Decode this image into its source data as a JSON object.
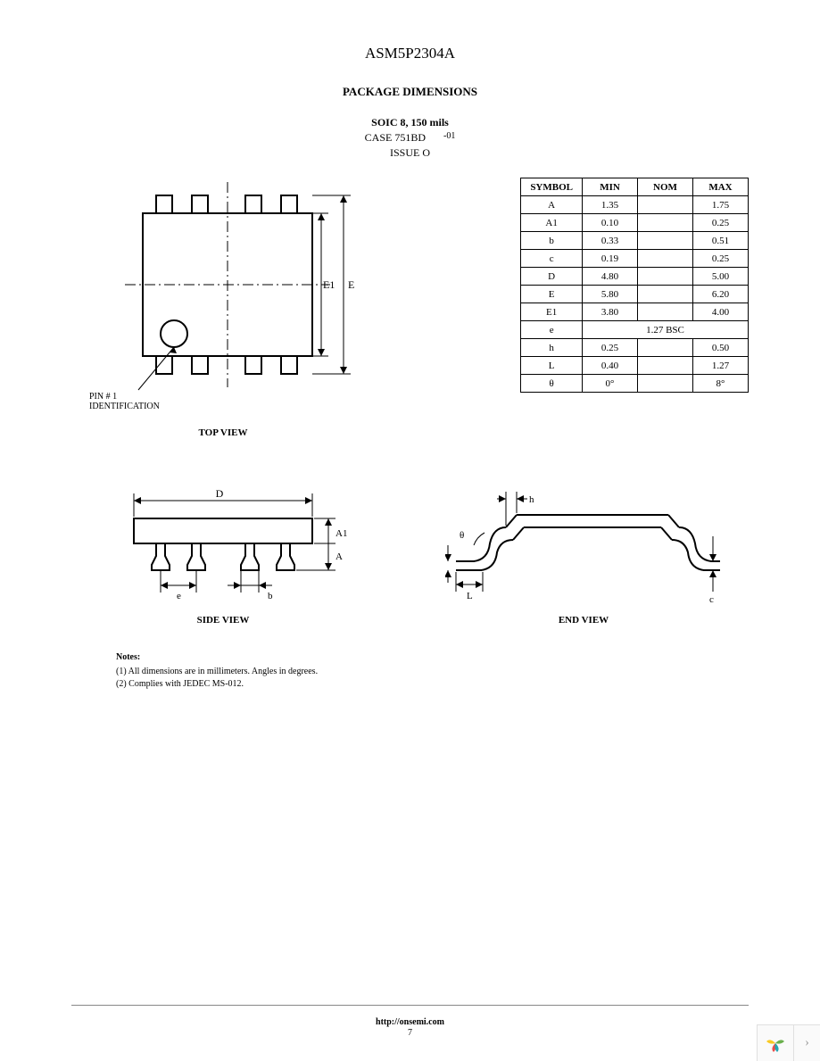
{
  "header": {
    "part_number": "ASM5P2304A",
    "section_title": "PACKAGE DIMENSIONS",
    "package_bold": "SOIC 8, 150 mils",
    "case_line": "CASE 751BD",
    "case_suffix": "-01",
    "issue_line": "ISSUE O"
  },
  "views": {
    "top_label": "TOP VIEW",
    "side_label": "SIDE VIEW",
    "end_label": "END VIEW",
    "pin1_label": "PIN # 1\nIDENTIFICATION",
    "dim_E1": "E1",
    "dim_E": "E",
    "dim_D": "D",
    "dim_A1": "A1",
    "dim_A": "A",
    "dim_e": "e",
    "dim_b": "b",
    "dim_h": "h",
    "dim_theta": "θ",
    "dim_L": "L",
    "dim_c": "c"
  },
  "table": {
    "headers": [
      "SYMBOL",
      "MIN",
      "NOM",
      "MAX"
    ],
    "rows": [
      {
        "sym": "A",
        "min": "1.35",
        "nom": "",
        "max": "1.75"
      },
      {
        "sym": "A1",
        "min": "0.10",
        "nom": "",
        "max": "0.25"
      },
      {
        "sym": "b",
        "min": "0.33",
        "nom": "",
        "max": "0.51"
      },
      {
        "sym": "c",
        "min": "0.19",
        "nom": "",
        "max": "0.25"
      },
      {
        "sym": "D",
        "min": "4.80",
        "nom": "",
        "max": "5.00"
      },
      {
        "sym": "E",
        "min": "5.80",
        "nom": "",
        "max": "6.20"
      },
      {
        "sym": "E1",
        "min": "3.80",
        "nom": "",
        "max": "4.00"
      },
      {
        "sym": "e",
        "span": "1.27 BSC"
      },
      {
        "sym": "h",
        "min": "0.25",
        "nom": "",
        "max": "0.50"
      },
      {
        "sym": "L",
        "min": "0.40",
        "nom": "",
        "max": "1.27"
      },
      {
        "sym": "θ",
        "min": "0°",
        "nom": "",
        "max": "8°"
      }
    ]
  },
  "notes": {
    "title": "Notes:",
    "lines": [
      "(1) All dimensions are in millimeters. Angles in degrees.",
      "(2) Complies with JEDEC MS-012."
    ]
  },
  "footer": {
    "url": "http://onsemi.com",
    "page": "7"
  },
  "styling": {
    "stroke_color": "#000000",
    "stroke_width_main": 2,
    "stroke_width_dim": 1,
    "background": "#ffffff",
    "font_serif": "Times New Roman",
    "table_border_color": "#000000",
    "hr_color": "#888888",
    "widget_bg": "#fafafa",
    "widget_border": "#e0e0e0",
    "widget_arrow_color": "#999999",
    "logo_colors": [
      "#f9ca24",
      "#6ab04c",
      "#22a6b3",
      "#eb4d4b"
    ]
  }
}
